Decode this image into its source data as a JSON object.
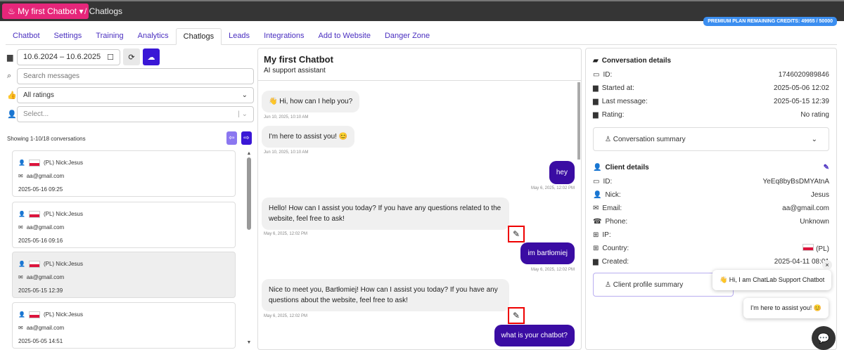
{
  "topbar": {
    "brand": "My first Chatbot",
    "breadcrumb": "/ Chatlogs",
    "credits": "PREMIUM PLAN REMAINING CREDITS: 49955 / 50000"
  },
  "tabs": [
    "Chatbot",
    "Settings",
    "Training",
    "Analytics",
    "Chatlogs",
    "Leads",
    "Integrations",
    "Add to Website",
    "Danger Zone"
  ],
  "filters": {
    "date_range": "10.6.2024 – 10.6.2025",
    "search_placeholder": "Search messages",
    "rating": "All ratings",
    "user_placeholder": "Select..."
  },
  "list": {
    "showing": "Showing 1-10/18 conversations",
    "items": [
      {
        "name": "(PL) Nick:Jesus",
        "email": "aa@gmail.com",
        "date": "2025-05-16 09:25"
      },
      {
        "name": "(PL) Nick:Jesus",
        "email": "aa@gmail.com",
        "date": "2025-05-16 09:16"
      },
      {
        "name": "(PL) Nick:Jesus",
        "email": "aa@gmail.com",
        "date": "2025-05-15 12:39"
      },
      {
        "name": "(PL) Nick:Jesus",
        "email": "aa@gmail.com",
        "date": "2025-05-05 14:51"
      }
    ]
  },
  "chat": {
    "title": "My first Chatbot",
    "subtitle": "AI support assistant",
    "messages": [
      {
        "text": "👋 Hi, how can I help you?",
        "time": "Jun 10, 2025, 10:10 AM"
      },
      {
        "text": "I'm here to assist you! 😊",
        "time": "Jun 10, 2025, 10:10 AM"
      },
      {
        "text": "hey",
        "time": "May 6, 2025, 12:02 PM"
      },
      {
        "text": "Hello! How can I assist you today? If you have any questions related to the website, feel free to ask!",
        "time": "May 6, 2025, 12:02 PM"
      },
      {
        "text": "im bartłomiej",
        "time": "May 6, 2025, 12:02 PM"
      },
      {
        "text": "Nice to meet you, Bartłomiej! How can I assist you today? If you have any questions about the website, feel free to ask!",
        "time": "May 6, 2025, 12:02 PM"
      },
      {
        "text": "what is your chatbot?"
      }
    ]
  },
  "conversation": {
    "title": "Conversation details",
    "id_label": "ID:",
    "id": "1746020989846",
    "started_label": "Started at:",
    "started": "2025-05-06 12:02",
    "last_label": "Last message:",
    "last": "2025-05-15 12:39",
    "rating_label": "Rating:",
    "rating": "No rating",
    "summary": "Conversation summary"
  },
  "client": {
    "title": "Client details",
    "id_label": "ID:",
    "id": "YeEq8byBsDMYAtnA",
    "nick_label": "Nick:",
    "nick": "Jesus",
    "email_label": "Email:",
    "email": "aa@gmail.com",
    "phone_label": "Phone:",
    "phone": "Unknown",
    "ip_label": "IP:",
    "country_label": "Country:",
    "country": "(PL)",
    "created_label": "Created:",
    "created": "2025-04-11 08:01",
    "summary": "Client profile summary"
  },
  "widget": {
    "greeting": "👋 Hi, I am ChatLab Support Chatbot",
    "msg": "I'm here to assist you! 😊"
  },
  "colors": {
    "brand": "#e6267a",
    "accent": "#3a0ca3",
    "credits": "#3b8ef0"
  }
}
